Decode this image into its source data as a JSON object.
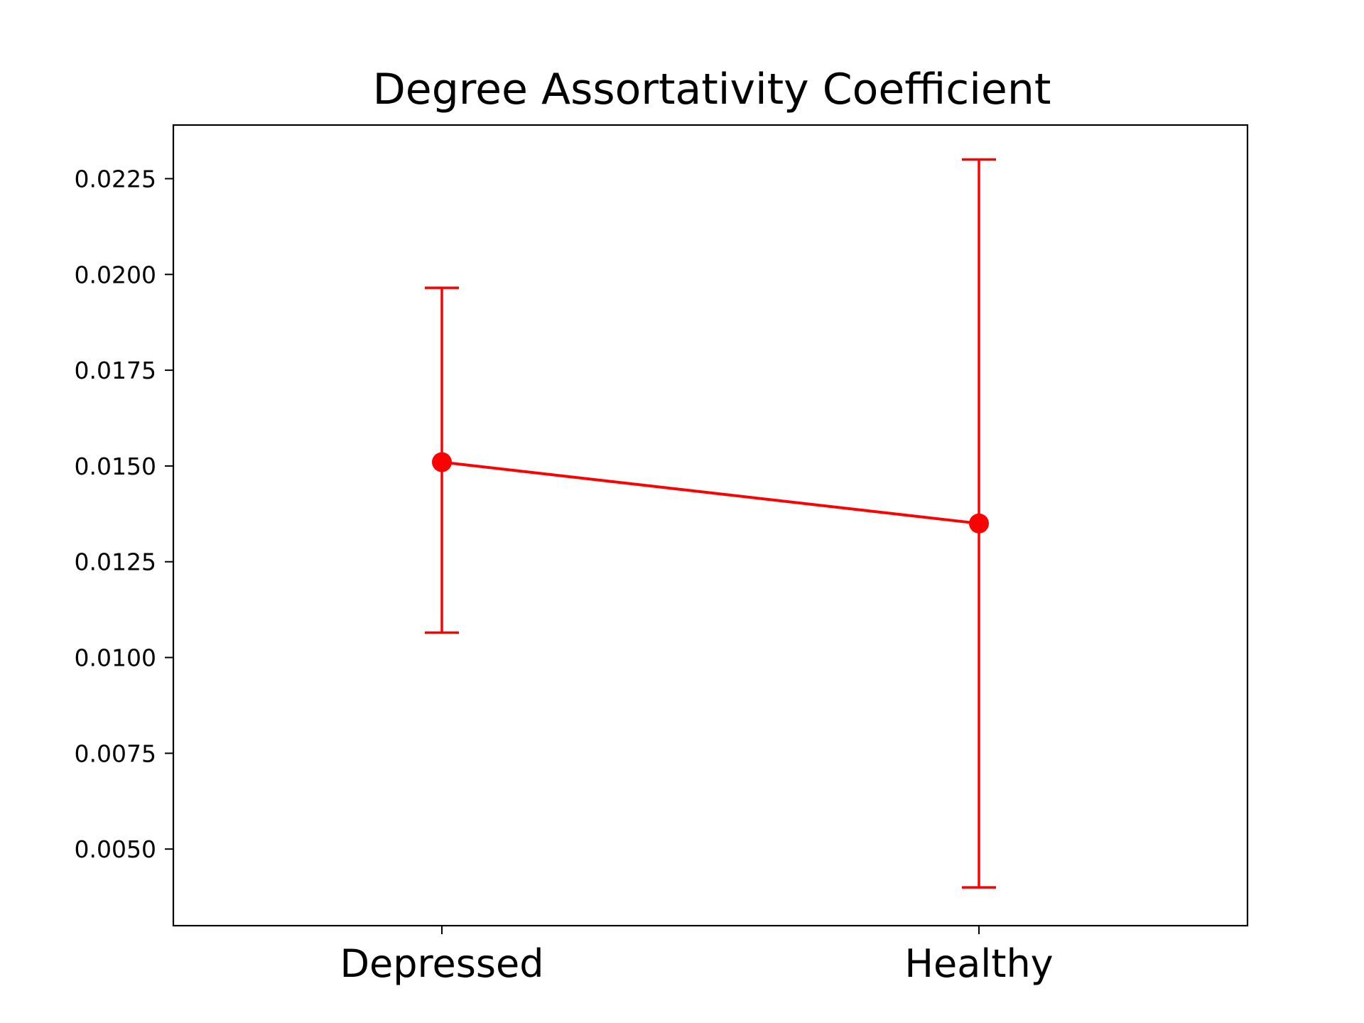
{
  "chart_data": {
    "type": "line",
    "title": "Degree Assortativity Coefficient",
    "xlabel": "",
    "ylabel": "",
    "categories": [
      "Depressed",
      "Healthy"
    ],
    "series": [
      {
        "values": [
          0.0151,
          0.0135
        ],
        "error_low": [
          0.01065,
          0.004
        ],
        "error_high": [
          0.01965,
          0.023
        ],
        "color": "#ff0000"
      }
    ],
    "ylim": [
      0.003,
      0.0239
    ],
    "yticks": [
      0.005,
      0.0075,
      0.01,
      0.0125,
      0.015,
      0.0175,
      0.02,
      0.0225
    ],
    "ytick_labels": [
      "0.0050",
      "0.0075",
      "0.0100",
      "0.0125",
      "0.0150",
      "0.0175",
      "0.0200",
      "0.0225"
    ],
    "grid": false,
    "legend": "none"
  }
}
